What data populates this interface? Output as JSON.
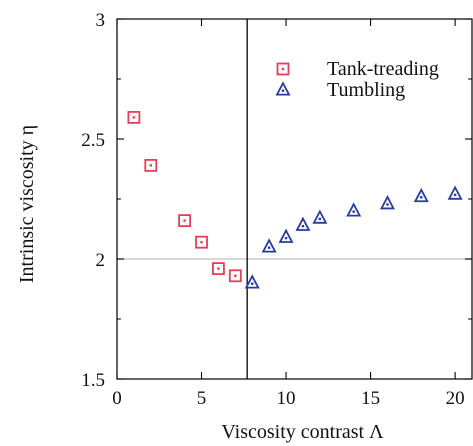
{
  "chart_data": {
    "type": "scatter",
    "xlabel": "Viscosity contrast Λ",
    "ylabel": "Intrinsic viscosity η",
    "xlim": [
      0,
      21
    ],
    "ylim": [
      1.5,
      3.0
    ],
    "x_ticks": [
      0,
      5,
      10,
      15,
      20
    ],
    "y_ticks": [
      1.5,
      2,
      2.5,
      3
    ],
    "reference_lines": {
      "horizontal_y": 2.0,
      "horizontal_color": "#c0c0c0",
      "vertical_x": 7.7,
      "vertical_color": "#000000"
    },
    "legend_position": "top-right",
    "series": [
      {
        "name": "Tank-treading",
        "marker": "square-dot",
        "color": "#e0405a",
        "points": [
          {
            "x": 1,
            "y": 2.59
          },
          {
            "x": 2,
            "y": 2.39
          },
          {
            "x": 4,
            "y": 2.16
          },
          {
            "x": 5,
            "y": 2.07
          },
          {
            "x": 6,
            "y": 1.96
          },
          {
            "x": 7,
            "y": 1.93
          }
        ]
      },
      {
        "name": "Tumbling",
        "marker": "triangle-dot",
        "color": "#283c9e",
        "points": [
          {
            "x": 8,
            "y": 1.9
          },
          {
            "x": 9,
            "y": 2.05
          },
          {
            "x": 10,
            "y": 2.09
          },
          {
            "x": 11,
            "y": 2.14
          },
          {
            "x": 12,
            "y": 2.17
          },
          {
            "x": 14,
            "y": 2.2
          },
          {
            "x": 16,
            "y": 2.23
          },
          {
            "x": 18,
            "y": 2.26
          },
          {
            "x": 20,
            "y": 2.27
          }
        ]
      }
    ]
  }
}
